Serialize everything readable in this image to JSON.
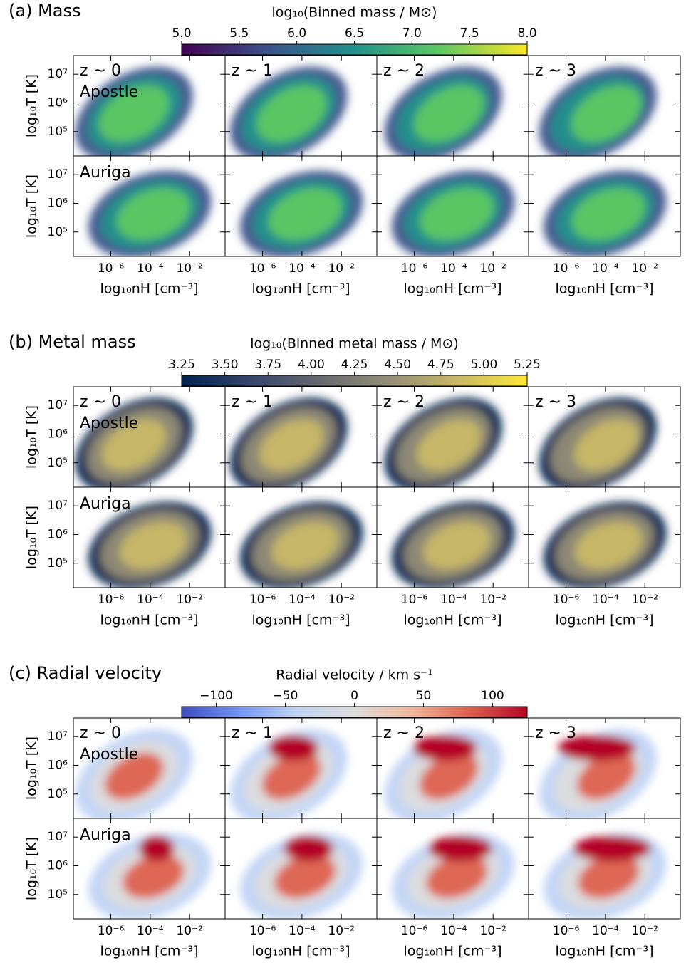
{
  "chart_data": {
    "type": "heatmap",
    "columns": [
      "z ~ 0",
      "z ~ 1",
      "z ~ 2",
      "z ~ 3"
    ],
    "rows": [
      "Apostle",
      "Auriga"
    ],
    "xlabel": "log₁₀nH [cm⁻³]",
    "ylabel": "log₁₀T [K]",
    "xlim": [
      -7.9,
      -0.2
    ],
    "ylim": [
      4.15,
      7.65
    ],
    "xticks": [
      {
        "value": -6,
        "label": "10⁻⁶"
      },
      {
        "value": -4,
        "label": "10⁻⁴"
      },
      {
        "value": -2,
        "label": "10⁻²"
      }
    ],
    "yticks": [
      {
        "value": 5,
        "label": "10⁵"
      },
      {
        "value": 6,
        "label": "10⁶"
      },
      {
        "value": 7,
        "label": "10⁷"
      }
    ],
    "panels": [
      {
        "title": "(a) Mass",
        "colormap": "viridis",
        "colorbar": {
          "label": "log₁₀(Binned mass / M⊙)",
          "lim": [
            5,
            8
          ],
          "ticks": [
            {
              "value": 5,
              "label": "5.0"
            },
            5.5,
            {
              "value": 6,
              "label": "6.0"
            },
            6.5,
            {
              "value": 7,
              "label": "7.0"
            },
            7.5,
            {
              "value": 8,
              "label": "8.0"
            }
          ]
        }
      },
      {
        "title": "(b) Metal mass",
        "colormap": "cividis",
        "colorbar": {
          "label": "log₁₀(Binned metal mass / M⊙)",
          "lim": [
            3.25,
            5.25
          ],
          "ticks": [
            3.25,
            {
              "value": 3.5,
              "label": "3.50"
            },
            3.75,
            {
              "value": 4,
              "label": "4.00"
            },
            4.25,
            {
              "value": 4.5,
              "label": "4.50"
            },
            4.75,
            {
              "value": 5,
              "label": "5.00"
            },
            5.25
          ]
        }
      },
      {
        "title": "(c) Radial velocity",
        "colormap": "coolwarm",
        "colorbar": {
          "label": "Radial velocity / km s⁻¹",
          "lim": [
            -125,
            125
          ],
          "ticks": [
            {
              "value": -100,
              "label": "−100"
            },
            {
              "value": -50,
              "label": "−50"
            },
            0,
            50,
            100
          ]
        }
      }
    ]
  }
}
